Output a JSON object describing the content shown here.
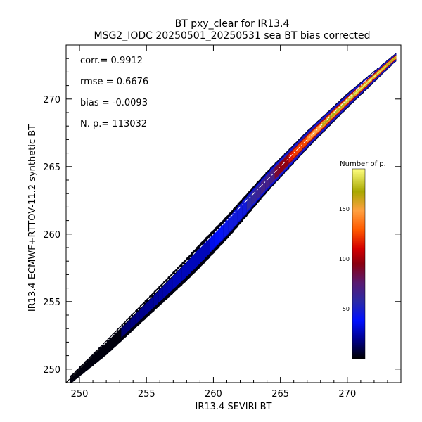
{
  "chart_data": {
    "type": "heatmap",
    "title": "BT pxy_clear for IR13.4",
    "subtitle": "MSG2_IODC 20250501_20250531 sea BT bias corrected",
    "xlabel": "IR13.4 SEVIRI BT",
    "ylabel": "IR13.4 ECMWF+RTTOV-11.2 synthetic BT",
    "xlim": [
      249,
      274
    ],
    "ylim": [
      249,
      274
    ],
    "x_ticks": [
      250,
      255,
      260,
      265,
      270
    ],
    "y_ticks": [
      250,
      255,
      260,
      265,
      270
    ],
    "grid": false,
    "stats": [
      {
        "label": "corr.=",
        "value": "0.9912"
      },
      {
        "label": "rmse =",
        "value": "0.6676"
      },
      {
        "label": "bias =",
        "value": "-0.0093"
      },
      {
        "label": "N. p.=",
        "value": "113032"
      }
    ],
    "colorbar": {
      "title": "Number of p.",
      "range": [
        0,
        190
      ],
      "ticks": [
        50,
        100,
        150
      ],
      "placement": "right-inside"
    },
    "distribution": {
      "center_line": [
        [
          249.3,
          249.2
        ],
        [
          252,
          251.6
        ],
        [
          255,
          254.5
        ],
        [
          258,
          257.4
        ],
        [
          261,
          260.5
        ],
        [
          264,
          263.9
        ],
        [
          267,
          267.0
        ],
        [
          270,
          269.9
        ],
        [
          273.6,
          273.1
        ]
      ],
      "peak_count_by_x": [
        [
          249.3,
          5
        ],
        [
          255,
          20
        ],
        [
          260,
          35
        ],
        [
          264,
          70
        ],
        [
          266,
          120
        ],
        [
          268,
          160
        ],
        [
          270,
          180
        ],
        [
          272,
          190
        ],
        [
          273.6,
          170
        ]
      ],
      "spread_by_x": [
        [
          249.3,
          0.3
        ],
        [
          252,
          0.55
        ],
        [
          256,
          0.75
        ],
        [
          259,
          0.9
        ],
        [
          262,
          0.85
        ],
        [
          266,
          0.7
        ],
        [
          270,
          0.55
        ],
        [
          273.6,
          0.3
        ]
      ]
    },
    "reference_line": "one-to-one"
  }
}
